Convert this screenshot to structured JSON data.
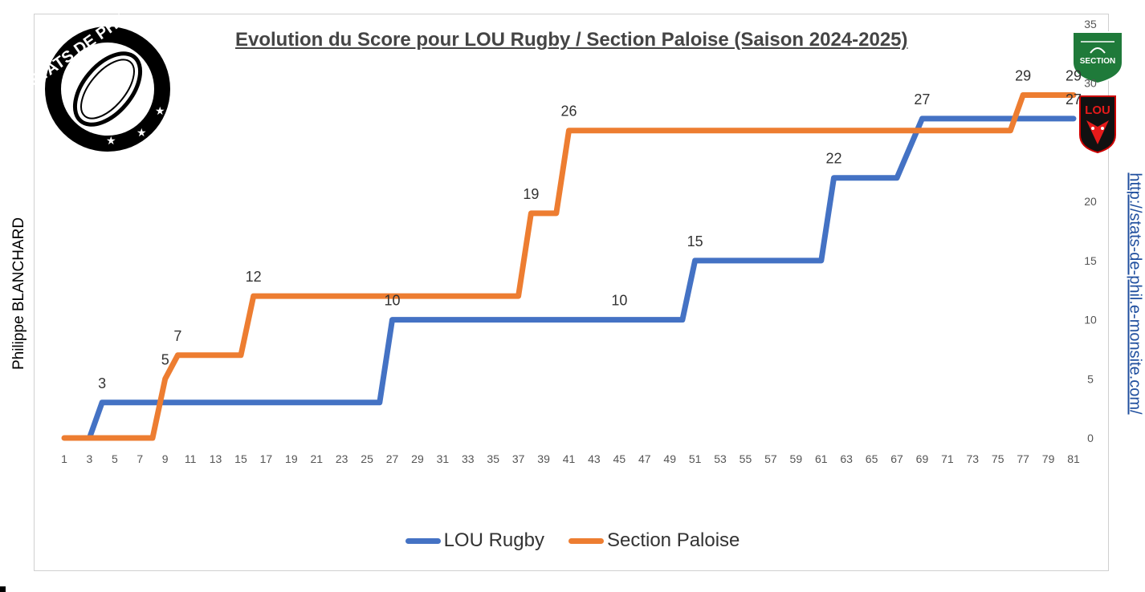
{
  "title": "Evolution du Score pour LOU Rugby / Section Paloise (Saison 2024-2025)",
  "author": "Philippe BLANCHARD",
  "site": "http://stats-de-phil.e-monsite.com/",
  "logo": {
    "text": "STATS DE PHIL"
  },
  "badges": {
    "section_paloise": "SECTION",
    "lou": "LOU"
  },
  "legend": [
    {
      "name": "LOU Rugby",
      "color": "#4472c4"
    },
    {
      "name": "Section Paloise",
      "color": "#ed7d31"
    }
  ],
  "chart_data": {
    "type": "line",
    "title": "Evolution du Score pour LOU Rugby / Section Paloise (Saison 2024-2025)",
    "x_ticks": [
      "1",
      "3",
      "5",
      "7",
      "9",
      "11",
      "13",
      "15",
      "17",
      "19",
      "21",
      "23",
      "25",
      "27",
      "29",
      "31",
      "33",
      "35",
      "37",
      "39",
      "41",
      "43",
      "45",
      "47",
      "49",
      "51",
      "53",
      "55",
      "57",
      "59",
      "61",
      "63",
      "65",
      "67",
      "69",
      "71",
      "73",
      "75",
      "77",
      "79",
      "81"
    ],
    "y_ticks": [
      "0",
      "5",
      "10",
      "15",
      "20",
      "30",
      "35"
    ],
    "xlim": [
      1,
      81
    ],
    "ylim": [
      0,
      35
    ],
    "series": [
      {
        "name": "LOU Rugby",
        "color": "#4472c4",
        "points": [
          [
            3,
            0
          ],
          [
            4,
            3
          ],
          [
            26,
            3
          ],
          [
            27,
            10
          ],
          [
            50,
            10
          ],
          [
            51,
            15
          ],
          [
            61,
            15
          ],
          [
            62,
            22
          ],
          [
            67,
            22
          ],
          [
            69,
            27
          ],
          [
            81,
            27
          ]
        ],
        "labels": [
          {
            "x": 4,
            "y": 3,
            "text": "3"
          },
          {
            "x": 27,
            "y": 10,
            "text": "10"
          },
          {
            "x": 45,
            "y": 10,
            "text": "10"
          },
          {
            "x": 51,
            "y": 15,
            "text": "15"
          },
          {
            "x": 62,
            "y": 22,
            "text": "22"
          },
          {
            "x": 69,
            "y": 27,
            "text": "27"
          },
          {
            "x": 81,
            "y": 27,
            "text": "27"
          }
        ]
      },
      {
        "name": "Section Paloise",
        "color": "#ed7d31",
        "points": [
          [
            1,
            0
          ],
          [
            8,
            0
          ],
          [
            9,
            5
          ],
          [
            10,
            7
          ],
          [
            15,
            7
          ],
          [
            16,
            12
          ],
          [
            37,
            12
          ],
          [
            38,
            19
          ],
          [
            40,
            19
          ],
          [
            41,
            26
          ],
          [
            76,
            26
          ],
          [
            77,
            29
          ],
          [
            81,
            29
          ]
        ],
        "labels": [
          {
            "x": 9,
            "y": 5,
            "text": "5"
          },
          {
            "x": 10,
            "y": 7,
            "text": "7"
          },
          {
            "x": 16,
            "y": 12,
            "text": "12"
          },
          {
            "x": 38,
            "y": 19,
            "text": "19"
          },
          {
            "x": 41,
            "y": 26,
            "text": "26"
          },
          {
            "x": 77,
            "y": 29,
            "text": "29"
          },
          {
            "x": 81,
            "y": 29,
            "text": "29"
          }
        ]
      }
    ]
  }
}
